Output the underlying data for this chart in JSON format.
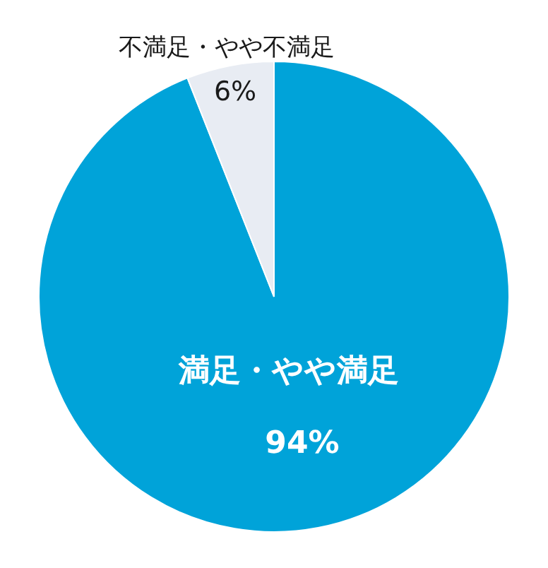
{
  "chart_data": {
    "type": "pie",
    "categories": [
      "満足・やや満足",
      "不満足・やや不満足"
    ],
    "values": [
      94,
      6
    ],
    "colors": [
      "#00a3d9",
      "#e8ecf3"
    ],
    "value_labels": [
      "94%",
      "6%"
    ],
    "legend": false
  }
}
